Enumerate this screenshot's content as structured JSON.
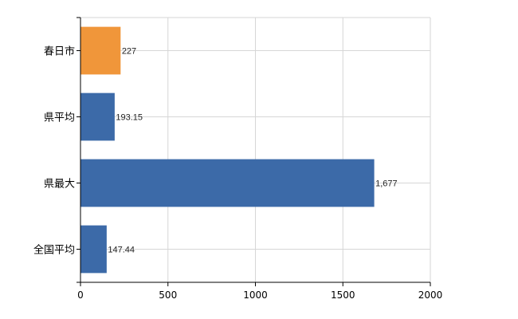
{
  "chart_data": {
    "type": "bar",
    "orientation": "horizontal",
    "categories": [
      "春日市",
      "県平均",
      "県最大",
      "全国平均"
    ],
    "values": [
      227,
      193.15,
      1677,
      147.44
    ],
    "data_labels": [
      "227",
      "193.15",
      "1,677",
      "147.44"
    ],
    "bar_colors": [
      "#f0963a",
      "#3c6aa8",
      "#3c6aa8",
      "#3c6aa8"
    ],
    "xlim": [
      0,
      2000
    ],
    "xticks": [
      0,
      500,
      1000,
      1500,
      2000
    ],
    "xtick_labels": [
      "0",
      "500",
      "1000",
      "1500",
      "2000"
    ],
    "grid": true,
    "title": "",
    "xlabel": "",
    "ylabel": ""
  }
}
